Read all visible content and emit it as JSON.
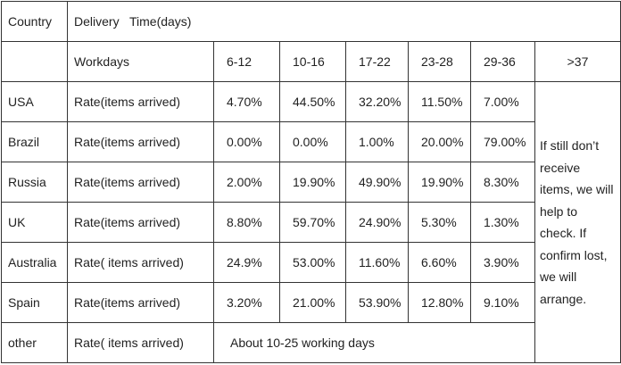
{
  "table": {
    "header": [
      "Country",
      "Delivery   Time(days)"
    ],
    "subheader": [
      "Workdays",
      "6-12",
      "10-16",
      "17-22",
      "23-28",
      "29-36",
      ">37"
    ],
    "rows": [
      [
        "USA",
        "Rate(items arrived)",
        "4.70%",
        "44.50%",
        "32.20%",
        "11.50%",
        "7.00%"
      ],
      [
        "Brazil",
        "Rate(items arrived)",
        "0.00%",
        "0.00%",
        "1.00%",
        "20.00%",
        "79.00%"
      ],
      [
        "Russia",
        "Rate(items arrived)",
        "2.00%",
        "19.90%",
        "49.90%",
        "19.90%",
        "8.30%"
      ],
      [
        "UK",
        "Rate(items arrived)",
        "8.80%",
        "59.70%",
        "24.90%",
        "5.30%",
        "1.30%"
      ],
      [
        "Australia",
        "Rate( items arrived)",
        "24.9%",
        "53.00%",
        "11.60%",
        "6.60%",
        "3.90%"
      ],
      [
        "Spain",
        "Rate(items arrived)",
        "3.20%",
        "21.00%",
        "53.90%",
        "12.80%",
        "9.10%"
      ]
    ],
    "note": [
      "If still don’t",
      "receive",
      "items, we will",
      "help to",
      "check. If",
      "confirm lost,",
      "we will",
      "arrange."
    ],
    "other": [
      "other",
      "Rate( items arrived)",
      "About 10-25 working days"
    ]
  }
}
